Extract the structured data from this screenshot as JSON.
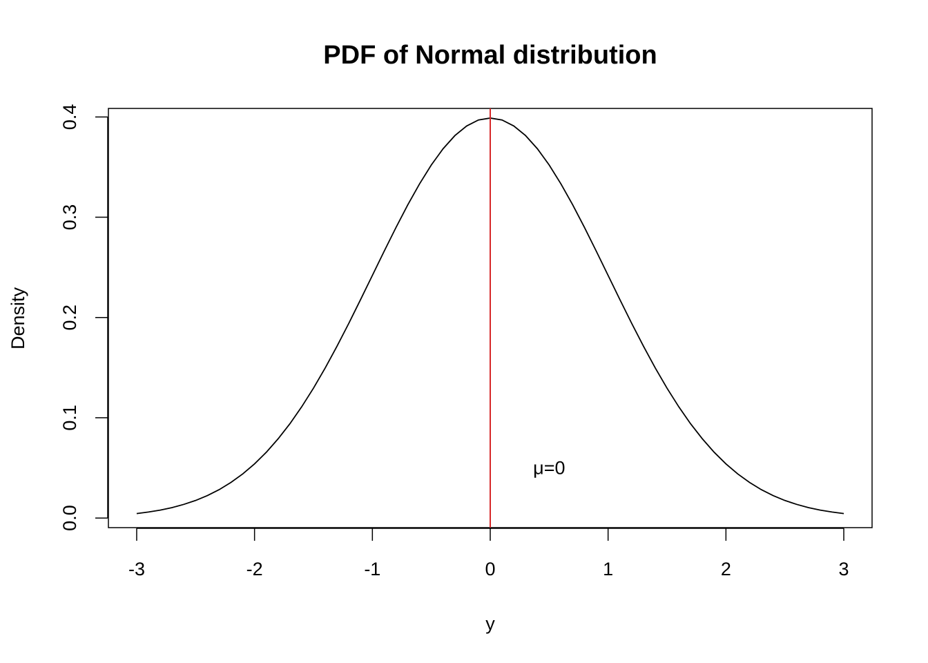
{
  "chart_data": {
    "type": "line",
    "title": "PDF of Normal distribution",
    "xlabel": "y",
    "ylabel": "Density",
    "xlim": [
      -3.24,
      3.24
    ],
    "ylim": [
      -0.0096,
      0.4085
    ],
    "x_ticks": [
      {
        "value": -3,
        "label": "-3"
      },
      {
        "value": -2,
        "label": "-2"
      },
      {
        "value": -1,
        "label": "-1"
      },
      {
        "value": 0,
        "label": "0"
      },
      {
        "value": 1,
        "label": "1"
      },
      {
        "value": 2,
        "label": "2"
      },
      {
        "value": 3,
        "label": "3"
      }
    ],
    "y_ticks": [
      {
        "value": 0.0,
        "label": "0.0"
      },
      {
        "value": 0.1,
        "label": "0.1"
      },
      {
        "value": 0.2,
        "label": "0.2"
      },
      {
        "value": 0.3,
        "label": "0.3"
      },
      {
        "value": 0.4,
        "label": "0.4"
      }
    ],
    "grid": false,
    "series": [
      {
        "color": "#000000",
        "x": [
          -3.0,
          -2.9,
          -2.8,
          -2.7,
          -2.6,
          -2.5,
          -2.4,
          -2.3,
          -2.2,
          -2.1,
          -2.0,
          -1.9,
          -1.8,
          -1.7,
          -1.6,
          -1.5,
          -1.4,
          -1.3,
          -1.2,
          -1.1,
          -1.0,
          -0.9,
          -0.8,
          -0.7,
          -0.6,
          -0.5,
          -0.4,
          -0.3,
          -0.2,
          -0.1,
          0.0,
          0.1,
          0.2,
          0.3,
          0.4,
          0.5,
          0.6,
          0.7,
          0.8,
          0.9,
          1.0,
          1.1,
          1.2,
          1.3,
          1.4,
          1.5,
          1.6,
          1.7,
          1.8,
          1.9,
          2.0,
          2.1,
          2.2,
          2.3,
          2.4,
          2.5,
          2.6,
          2.7,
          2.8,
          2.9,
          3.0
        ],
        "values": [
          0.0044,
          0.006,
          0.0079,
          0.0104,
          0.0136,
          0.0175,
          0.0224,
          0.0283,
          0.0355,
          0.044,
          0.054,
          0.0656,
          0.079,
          0.094,
          0.1109,
          0.1295,
          0.1497,
          0.1714,
          0.1942,
          0.2179,
          0.242,
          0.2661,
          0.2897,
          0.3123,
          0.3332,
          0.3521,
          0.3683,
          0.3814,
          0.391,
          0.397,
          0.3989,
          0.397,
          0.391,
          0.3814,
          0.3683,
          0.3521,
          0.3332,
          0.3123,
          0.2897,
          0.2661,
          0.242,
          0.2179,
          0.1942,
          0.1714,
          0.1497,
          0.1295,
          0.1109,
          0.094,
          0.079,
          0.0656,
          0.054,
          0.044,
          0.0355,
          0.0283,
          0.0224,
          0.0175,
          0.0136,
          0.0104,
          0.0079,
          0.006,
          0.0044
        ]
      }
    ],
    "reference_line": {
      "orientation": "vertical",
      "x": 0,
      "color": "#d62728"
    },
    "annotations": [
      {
        "text": "μ=0",
        "x": 0.5,
        "y": 0.05
      }
    ]
  }
}
